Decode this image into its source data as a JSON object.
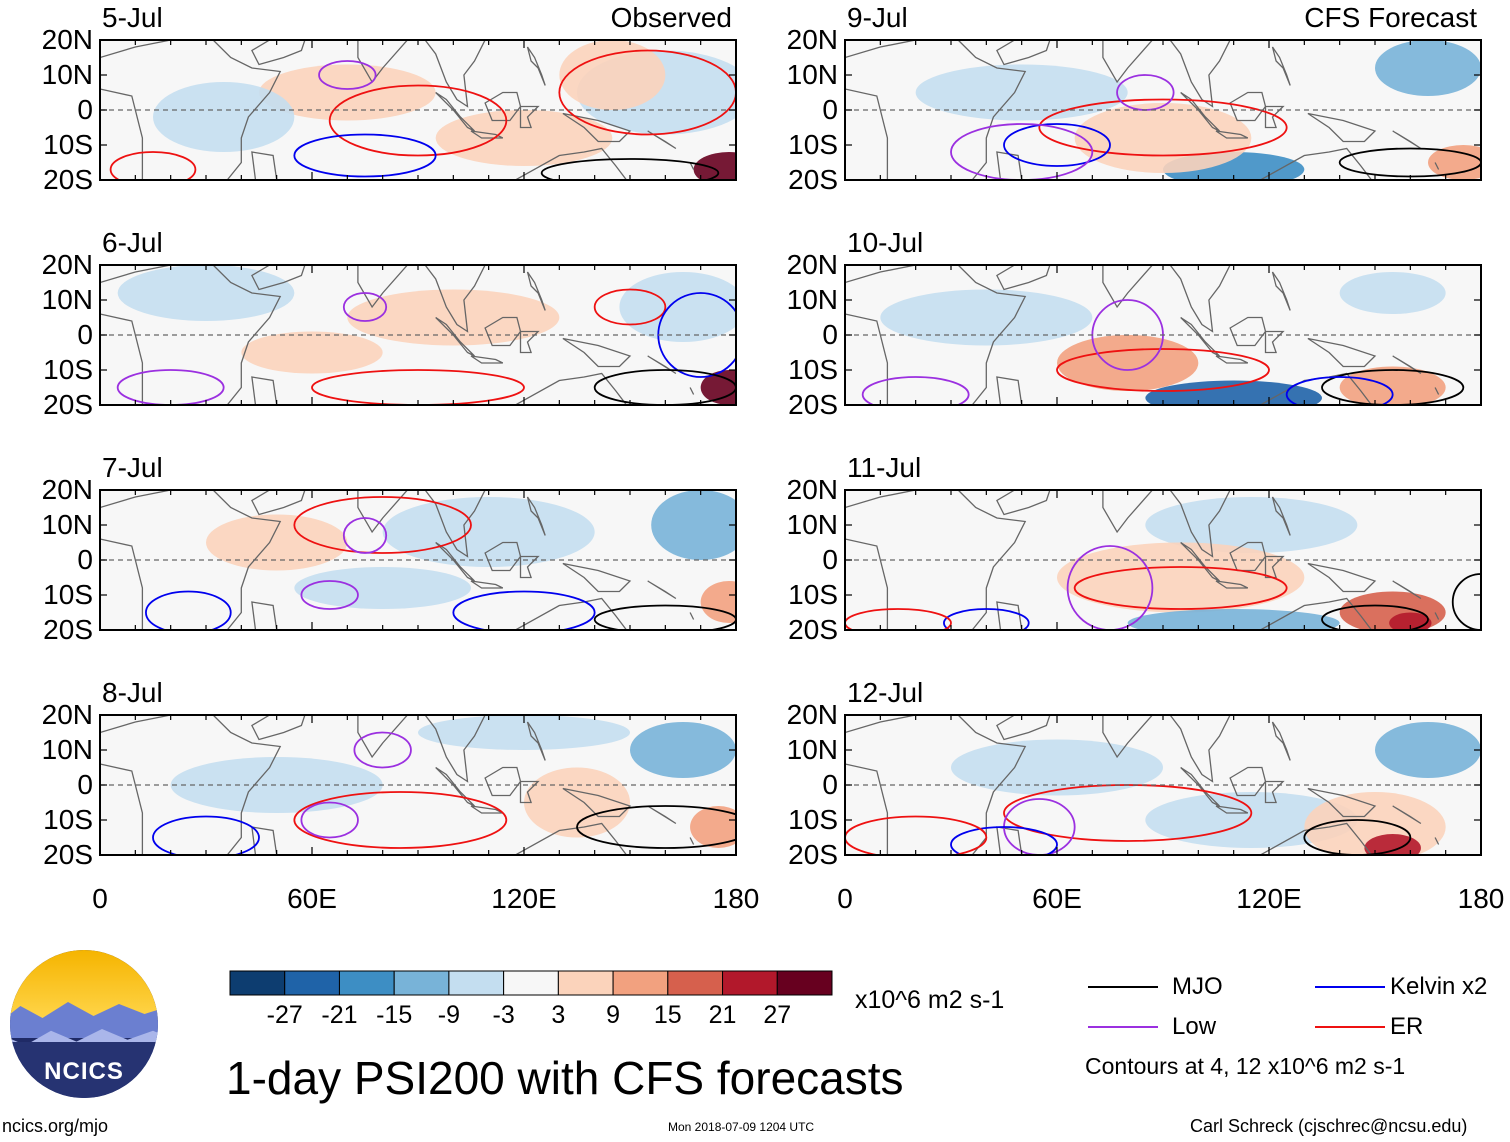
{
  "chart_data": {
    "type": "heatmap",
    "title": "1-day PSI200 with CFS forecasts",
    "variable": "200-hPa streamfunction anomaly",
    "units": "x10^6 m2 s-1",
    "xlim": [
      0,
      180
    ],
    "ylim": [
      -20,
      20
    ],
    "xticks": [
      0,
      60,
      120,
      180
    ],
    "xtick_labels": [
      "0",
      "60E",
      "120E",
      "180"
    ],
    "yticks": [
      20,
      10,
      0,
      -10,
      -20
    ],
    "ytick_labels": [
      "20N",
      "10N",
      "0",
      "10S",
      "20S"
    ],
    "columns": [
      {
        "source": "Observed",
        "panels": [
          "5-Jul",
          "6-Jul",
          "7-Jul",
          "8-Jul"
        ]
      },
      {
        "source": "CFS Forecast",
        "panels": [
          "9-Jul",
          "10-Jul",
          "11-Jul",
          "12-Jul"
        ]
      }
    ],
    "colorbar": {
      "levels": [
        -27,
        -21,
        -15,
        -9,
        -3,
        3,
        9,
        15,
        21,
        27
      ],
      "level_labels": [
        "-27",
        "-21",
        "-15",
        "-9",
        "-3",
        "3",
        "9",
        "15",
        "21",
        "27"
      ],
      "colors": [
        "#0d3d70",
        "#1f63a8",
        "#3d8ec4",
        "#78b3d8",
        "#c4def0",
        "#f7f7f7",
        "#fbd3bb",
        "#f2a17f",
        "#d6604d",
        "#b2182b",
        "#67001f"
      ]
    },
    "legend": [
      {
        "label": "MJO",
        "color": "#000000"
      },
      {
        "label": "Kelvin x2",
        "color": "#0000ee"
      },
      {
        "label": "Low",
        "color": "#9b30e0"
      },
      {
        "label": "ER",
        "color": "#ee1111"
      }
    ],
    "contour_note": "Contours at 4, 12 x10^6 m2 s-1"
  },
  "footer": {
    "website": "ncics.org/mjo",
    "timestamp": "Mon 2018-07-09 1204 UTC",
    "author": "Carl Schreck (cjschrec@ncsu.edu)",
    "logo_text": "NCICS"
  },
  "colors": {
    "neg": "#c4def0",
    "pos": "#fbd3bb",
    "land": "#666666"
  }
}
